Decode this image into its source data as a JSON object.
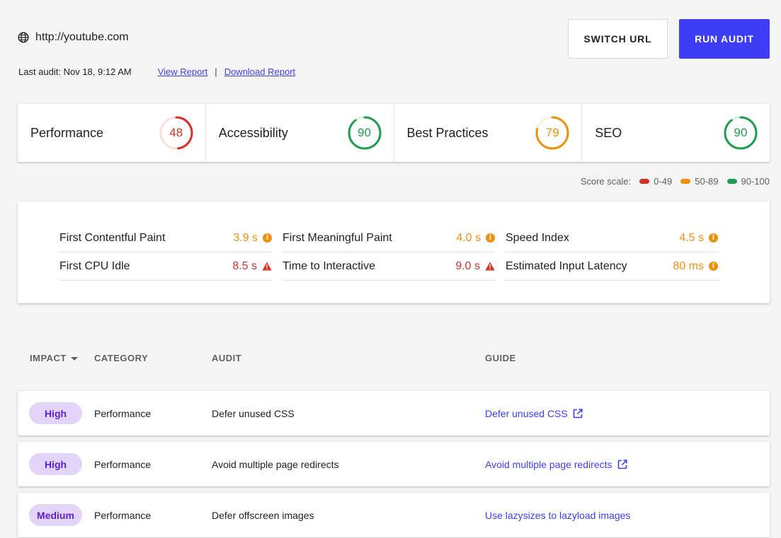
{
  "header": {
    "url": "http://youtube.com",
    "last_audit": "Last audit: Nov 18, 9:12 AM",
    "view_report": "View Report",
    "separator": "|",
    "download_report": "Download Report",
    "switch_url": "SWITCH URL",
    "run_audit": "RUN AUDIT"
  },
  "scores": [
    {
      "label": "Performance",
      "value": "48",
      "score": 48,
      "color": "#d93025",
      "track": "#fde0dd"
    },
    {
      "label": "Accessibility",
      "value": "90",
      "score": 90,
      "color": "#1e9f4f",
      "track": "#d4f0de"
    },
    {
      "label": "Best Practices",
      "value": "79",
      "score": 79,
      "color": "#f0900a",
      "track": "#fdefd6"
    },
    {
      "label": "SEO",
      "value": "90",
      "score": 90,
      "color": "#1e9f4f",
      "track": "#d4f0de"
    }
  ],
  "scale": {
    "label": "Score scale:",
    "ranges": [
      {
        "text": "0-49",
        "color": "#d93025"
      },
      {
        "text": "50-89",
        "color": "#f0900a"
      },
      {
        "text": "90-100",
        "color": "#1e9f4f"
      }
    ]
  },
  "metrics": [
    {
      "label": "First Contentful Paint",
      "value": "3.9 s",
      "status": "average",
      "color": "#f0900a"
    },
    {
      "label": "First Meaningful Paint",
      "value": "4.0 s",
      "status": "average",
      "color": "#f0900a"
    },
    {
      "label": "Speed Index",
      "value": "4.5 s",
      "status": "average",
      "color": "#f0900a"
    },
    {
      "label": "First CPU Idle",
      "value": "8.5 s",
      "status": "fail",
      "color": "#d93025"
    },
    {
      "label": "Time to Interactive",
      "value": "9.0 s",
      "status": "fail",
      "color": "#d93025"
    },
    {
      "label": "Estimated Input Latency",
      "value": "80 ms",
      "status": "average",
      "color": "#f0900a"
    }
  ],
  "table": {
    "headers": {
      "impact": "IMPACT",
      "category": "CATEGORY",
      "audit": "AUDIT",
      "guide": "GUIDE"
    },
    "rows": [
      {
        "impact": "High",
        "category": "Performance",
        "audit": "Defer unused CSS",
        "guide": "Defer unused CSS",
        "external": true
      },
      {
        "impact": "High",
        "category": "Performance",
        "audit": "Avoid multiple page redirects",
        "guide": "Avoid multiple page redirects",
        "external": true
      },
      {
        "impact": "Medium",
        "category": "Performance",
        "audit": "Defer offscreen images",
        "guide": "Use lazysizes to lazyload images",
        "external": false
      }
    ]
  },
  "icons": {
    "url": "globe-icon",
    "metric_average": "info-icon",
    "metric_fail": "warning-icon",
    "sort": "caret-down-icon",
    "guide_external": "external-link-icon"
  }
}
